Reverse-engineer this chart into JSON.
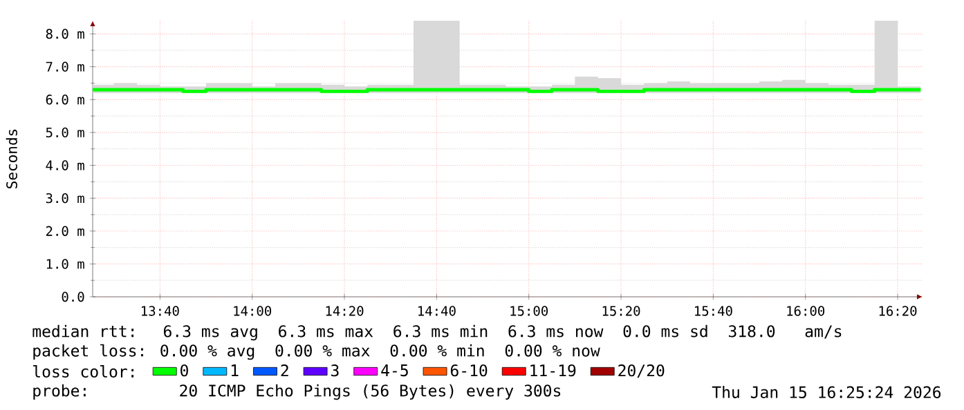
{
  "chart_data": {
    "type": "step",
    "ylabel": "Seconds",
    "x": [
      13.4233,
      13.5,
      13.5833,
      13.6667,
      13.75,
      13.8333,
      13.9167,
      14,
      14.0833,
      14.1667,
      14.25,
      14.3333,
      14.4167,
      14.5,
      14.5833,
      14.6667,
      14.75,
      14.8333,
      14.9167,
      15,
      15.0833,
      15.1667,
      15.25,
      15.3333,
      15.4167,
      15.5,
      15.5833,
      15.6667,
      15.75,
      15.8333,
      15.9167,
      16,
      16.0833,
      16.1667,
      16.25,
      16.3333,
      16.4167
    ],
    "series": [
      {
        "name": "0",
        "color": "#00ff00",
        "values": [
          6.3,
          6.3,
          6.3,
          6.3,
          6.3,
          6.25,
          6.3,
          6.3,
          6.3,
          6.3,
          6.3,
          6.25,
          6.25,
          6.3,
          6.3,
          6.3,
          6.3,
          6.3,
          6.3,
          6.3,
          6.25,
          6.3,
          6.3,
          6.25,
          6.25,
          6.3,
          6.3,
          6.3,
          6.3,
          6.3,
          6.3,
          6.3,
          6.3,
          6.3,
          6.25,
          6.3,
          6.3
        ],
        "lower": [
          6.2,
          6.2,
          6.2,
          6.2,
          6.2,
          6.2,
          6.2,
          6.2,
          6.2,
          6.2,
          6.2,
          6.2,
          6.2,
          6.2,
          6.2,
          6.2,
          6.2,
          6.2,
          6.2,
          6.2,
          6.2,
          6.2,
          6.2,
          6.2,
          6.2,
          6.2,
          6.2,
          6.2,
          6.2,
          6.2,
          6.2,
          6.2,
          6.2,
          6.2,
          6.2,
          6.2,
          6.2
        ],
        "upper": [
          6.45,
          6.45,
          6.5,
          6.45,
          6.4,
          6.4,
          6.5,
          6.5,
          6.4,
          6.5,
          6.5,
          6.45,
          6.4,
          6.45,
          6.45,
          8.4,
          8.4,
          6.45,
          6.45,
          6.4,
          6.4,
          6.45,
          6.7,
          6.65,
          6.45,
          6.5,
          6.55,
          6.5,
          6.5,
          6.5,
          6.55,
          6.6,
          6.5,
          6.45,
          6.45,
          8.4,
          6.4
        ]
      },
      {
        "name": "1",
        "color": "#00b8ff",
        "values": [
          null,
          null,
          null,
          null,
          null,
          null,
          null,
          null,
          null,
          null,
          null,
          null,
          null,
          null,
          null,
          null,
          null,
          null,
          null,
          null,
          null,
          null,
          null,
          null,
          null,
          null,
          null,
          null,
          null,
          null,
          null,
          null,
          null,
          null,
          null,
          null,
          null
        ]
      },
      {
        "name": "2",
        "color": "#0059ff",
        "values": [
          null,
          null,
          null,
          null,
          null,
          null,
          null,
          null,
          null,
          null,
          null,
          null,
          null,
          null,
          null,
          null,
          null,
          null,
          null,
          null,
          null,
          null,
          null,
          null,
          null,
          null,
          null,
          null,
          null,
          null,
          null,
          null,
          null,
          null,
          null,
          null,
          null
        ]
      },
      {
        "name": "3",
        "color": "#5e00ff",
        "values": [
          null,
          null,
          null,
          null,
          null,
          null,
          null,
          null,
          null,
          null,
          null,
          null,
          null,
          null,
          null,
          null,
          null,
          null,
          null,
          null,
          null,
          null,
          null,
          null,
          null,
          null,
          null,
          null,
          null,
          null,
          null,
          null,
          null,
          null,
          null,
          null,
          null
        ]
      },
      {
        "name": "4-5",
        "color": "#ff00ff",
        "values": [
          null,
          null,
          null,
          null,
          null,
          null,
          null,
          null,
          null,
          null,
          null,
          null,
          null,
          null,
          null,
          null,
          null,
          null,
          null,
          null,
          null,
          null,
          null,
          null,
          null,
          null,
          null,
          null,
          null,
          null,
          null,
          null,
          null,
          null,
          null,
          null,
          null
        ]
      },
      {
        "name": "6-10",
        "color": "#ff5500",
        "values": [
          null,
          null,
          null,
          null,
          null,
          null,
          null,
          null,
          null,
          null,
          null,
          null,
          null,
          null,
          null,
          null,
          null,
          null,
          null,
          null,
          null,
          null,
          null,
          null,
          null,
          null,
          null,
          null,
          null,
          null,
          null,
          null,
          null,
          null,
          null,
          null,
          null
        ]
      },
      {
        "name": "11-19",
        "color": "#ff0000",
        "values": [
          null,
          null,
          null,
          null,
          null,
          null,
          null,
          null,
          null,
          null,
          null,
          null,
          null,
          null,
          null,
          null,
          null,
          null,
          null,
          null,
          null,
          null,
          null,
          null,
          null,
          null,
          null,
          null,
          null,
          null,
          null,
          null,
          null,
          null,
          null,
          null,
          null
        ]
      },
      {
        "name": "20/20",
        "color": "#a10000",
        "values": [
          null,
          null,
          null,
          null,
          null,
          null,
          null,
          null,
          null,
          null,
          null,
          null,
          null,
          null,
          null,
          null,
          null,
          null,
          null,
          null,
          null,
          null,
          null,
          null,
          null,
          null,
          null,
          null,
          null,
          null,
          null,
          null,
          null,
          null,
          null,
          null,
          null
        ]
      }
    ],
    "xlim": [
      13.4233,
      16.4233
    ],
    "ylim": [
      0,
      8.4
    ],
    "xticks": [
      {
        "value": 13.6667,
        "label": "13:40"
      },
      {
        "value": 14,
        "label": "14:00"
      },
      {
        "value": 14.3333,
        "label": "14:20"
      },
      {
        "value": 14.6667,
        "label": "14:40"
      },
      {
        "value": 15,
        "label": "15:00"
      },
      {
        "value": 15.3333,
        "label": "15:20"
      },
      {
        "value": 15.6667,
        "label": "15:40"
      },
      {
        "value": 16,
        "label": "16:00"
      },
      {
        "value": 16.3333,
        "label": "16:20"
      }
    ],
    "yticks": [
      {
        "value": 0,
        "label": "0.0"
      },
      {
        "value": 1,
        "label": "1.0 m"
      },
      {
        "value": 2,
        "label": "2.0 m"
      },
      {
        "value": 3,
        "label": "3.0 m"
      },
      {
        "value": 4,
        "label": "4.0 m"
      },
      {
        "value": 5,
        "label": "5.0 m"
      },
      {
        "value": 6,
        "label": "6.0 m"
      },
      {
        "value": 7,
        "label": "7.0 m"
      },
      {
        "value": 8,
        "label": "8.0 m"
      }
    ],
    "grid": true,
    "legend": "bottom",
    "annotations": [
      "median rtt:  6.3 ms avg  6.3 ms max  6.3 ms min  6.3 ms now  0.0 ms sd  318.0   am/s",
      "packet loss: 0.00 % avg  0.00 % max  0.00 % min  0.00 % now",
      "loss color:",
      "probe:       20 ICMP Echo Pings (56 Bytes) every 300s",
      "Thu Jan 15 16:25:24 2026"
    ]
  }
}
